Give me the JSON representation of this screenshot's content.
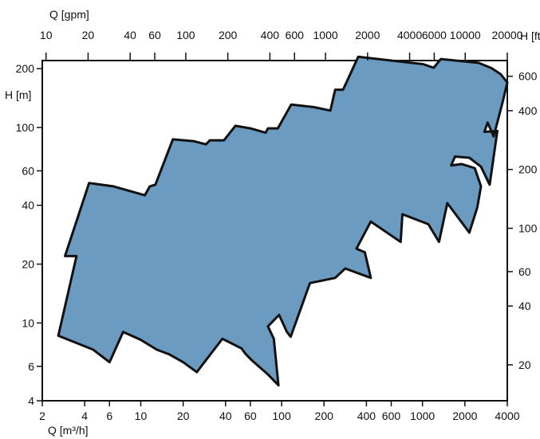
{
  "chart_data": {
    "type": "area",
    "title": "",
    "axes": {
      "bottom": {
        "label": "Q [m³/h]",
        "scale": "log",
        "range": [
          2,
          4000
        ],
        "ticks": [
          {
            "v": 2,
            "t": "2"
          },
          {
            "v": 4,
            "t": "4"
          },
          {
            "v": 6,
            "t": "6"
          },
          {
            "v": 10,
            "t": "10"
          },
          {
            "v": 20,
            "t": "20"
          },
          {
            "v": 40,
            "t": "40"
          },
          {
            "v": 60,
            "t": "60"
          },
          {
            "v": 100,
            "t": "100"
          },
          {
            "v": 200,
            "t": "200"
          },
          {
            "v": 400,
            "t": "400"
          },
          {
            "v": 600,
            "t": "600"
          },
          {
            "v": 1000,
            "t": "1000"
          },
          {
            "v": 2000,
            "t": "2000"
          },
          {
            "v": 4000,
            "t": "4000"
          }
        ]
      },
      "top": {
        "label": "Q [gpm]",
        "scale": "log",
        "range": [
          9.4,
          20000
        ],
        "ticks": [
          {
            "v": 10,
            "t": "10"
          },
          {
            "v": 20,
            "t": "20"
          },
          {
            "v": 40,
            "t": "40"
          },
          {
            "v": 60,
            "t": "60"
          },
          {
            "v": 100,
            "t": "100"
          },
          {
            "v": 200,
            "t": "200"
          },
          {
            "v": 400,
            "t": "400"
          },
          {
            "v": 600,
            "t": "600"
          },
          {
            "v": 1000,
            "t": "1000"
          },
          {
            "v": 2000,
            "t": "2000"
          },
          {
            "v": 4000,
            "t": "4000"
          },
          {
            "v": 6000,
            "t": "6000"
          },
          {
            "v": 10000,
            "t": "10000"
          },
          {
            "v": 20000,
            "t": "20000"
          }
        ]
      },
      "left": {
        "label": "H [m]",
        "scale": "log",
        "range": [
          4,
          220
        ],
        "ticks": [
          {
            "v": 4,
            "t": "4"
          },
          {
            "v": 6,
            "t": "6"
          },
          {
            "v": 10,
            "t": "10"
          },
          {
            "v": 20,
            "t": "20"
          },
          {
            "v": 40,
            "t": "40"
          },
          {
            "v": 60,
            "t": "60"
          },
          {
            "v": 100,
            "t": "100"
          },
          {
            "v": 200,
            "t": "200"
          }
        ]
      },
      "right": {
        "label": "H [ft]",
        "scale": "log",
        "range": [
          13.1,
          722
        ],
        "ticks": [
          {
            "v": 20,
            "t": "20"
          },
          {
            "v": 40,
            "t": "40"
          },
          {
            "v": 60,
            "t": "60"
          },
          {
            "v": 100,
            "t": "100"
          },
          {
            "v": 200,
            "t": "200"
          },
          {
            "v": 400,
            "t": "400"
          },
          {
            "v": 600,
            "t": "600"
          }
        ]
      }
    },
    "grid": false,
    "legend": "none",
    "series": [
      {
        "fill_color": "#6b9bc0",
        "outline_color": "#111111",
        "boundary": [
          {
            "q": 2.6,
            "h": 8.6
          },
          {
            "q": 3.5,
            "h": 22
          },
          {
            "q": 2.9,
            "h": 22
          },
          {
            "q": 4.3,
            "h": 52
          },
          {
            "q": 6.4,
            "h": 50
          },
          {
            "q": 10.7,
            "h": 45
          },
          {
            "q": 11.6,
            "h": 50
          },
          {
            "q": 12.7,
            "h": 51
          },
          {
            "q": 16.9,
            "h": 87
          },
          {
            "q": 24,
            "h": 85
          },
          {
            "q": 29,
            "h": 82
          },
          {
            "q": 31,
            "h": 86
          },
          {
            "q": 39,
            "h": 86
          },
          {
            "q": 47,
            "h": 102
          },
          {
            "q": 60,
            "h": 99
          },
          {
            "q": 77,
            "h": 94
          },
          {
            "q": 80,
            "h": 99
          },
          {
            "q": 94,
            "h": 99
          },
          {
            "q": 117,
            "h": 131
          },
          {
            "q": 170,
            "h": 127
          },
          {
            "q": 222,
            "h": 122
          },
          {
            "q": 240,
            "h": 156
          },
          {
            "q": 273,
            "h": 156
          },
          {
            "q": 350,
            "h": 230
          },
          {
            "q": 1010,
            "h": 211
          },
          {
            "q": 1200,
            "h": 202
          },
          {
            "q": 1350,
            "h": 224
          },
          {
            "q": 2500,
            "h": 214
          },
          {
            "q": 3100,
            "h": 201
          },
          {
            "q": 3600,
            "h": 187
          },
          {
            "q": 4000,
            "h": 170
          },
          {
            "q": 3700,
            "h": 134
          },
          {
            "q": 3200,
            "h": 90
          },
          {
            "q": 2900,
            "h": 106
          },
          {
            "q": 2750,
            "h": 95
          },
          {
            "q": 3400,
            "h": 96
          },
          {
            "q": 3000,
            "h": 51
          },
          {
            "q": 2600,
            "h": 63
          },
          {
            "q": 2150,
            "h": 70
          },
          {
            "q": 1700,
            "h": 71
          },
          {
            "q": 1600,
            "h": 64
          },
          {
            "q": 1900,
            "h": 65
          },
          {
            "q": 2350,
            "h": 62
          },
          {
            "q": 2600,
            "h": 50
          },
          {
            "q": 2450,
            "h": 39
          },
          {
            "q": 2150,
            "h": 29
          },
          {
            "q": 1500,
            "h": 41
          },
          {
            "q": 1310,
            "h": 26
          },
          {
            "q": 1100,
            "h": 32
          },
          {
            "q": 720,
            "h": 36
          },
          {
            "q": 700,
            "h": 26
          },
          {
            "q": 430,
            "h": 33
          },
          {
            "q": 340,
            "h": 24
          },
          {
            "q": 390,
            "h": 23
          },
          {
            "q": 430,
            "h": 17
          },
          {
            "q": 283,
            "h": 19
          },
          {
            "q": 240,
            "h": 17
          },
          {
            "q": 159,
            "h": 16
          },
          {
            "q": 116,
            "h": 8.5
          },
          {
            "q": 109,
            "h": 9
          },
          {
            "q": 96,
            "h": 11
          },
          {
            "q": 80,
            "h": 9.6
          },
          {
            "q": 88,
            "h": 8.3
          },
          {
            "q": 95,
            "h": 4.8
          },
          {
            "q": 79,
            "h": 5.5
          },
          {
            "q": 62,
            "h": 6.4
          },
          {
            "q": 55,
            "h": 7.0
          },
          {
            "q": 52,
            "h": 7.4
          },
          {
            "q": 38,
            "h": 8.3
          },
          {
            "q": 25,
            "h": 5.6
          },
          {
            "q": 20,
            "h": 6.3
          },
          {
            "q": 16,
            "h": 6.9
          },
          {
            "q": 13,
            "h": 7.3
          },
          {
            "q": 10,
            "h": 8.2
          },
          {
            "q": 7.5,
            "h": 9.0
          },
          {
            "q": 6.0,
            "h": 6.3
          },
          {
            "q": 4.6,
            "h": 7.3
          }
        ]
      }
    ]
  }
}
